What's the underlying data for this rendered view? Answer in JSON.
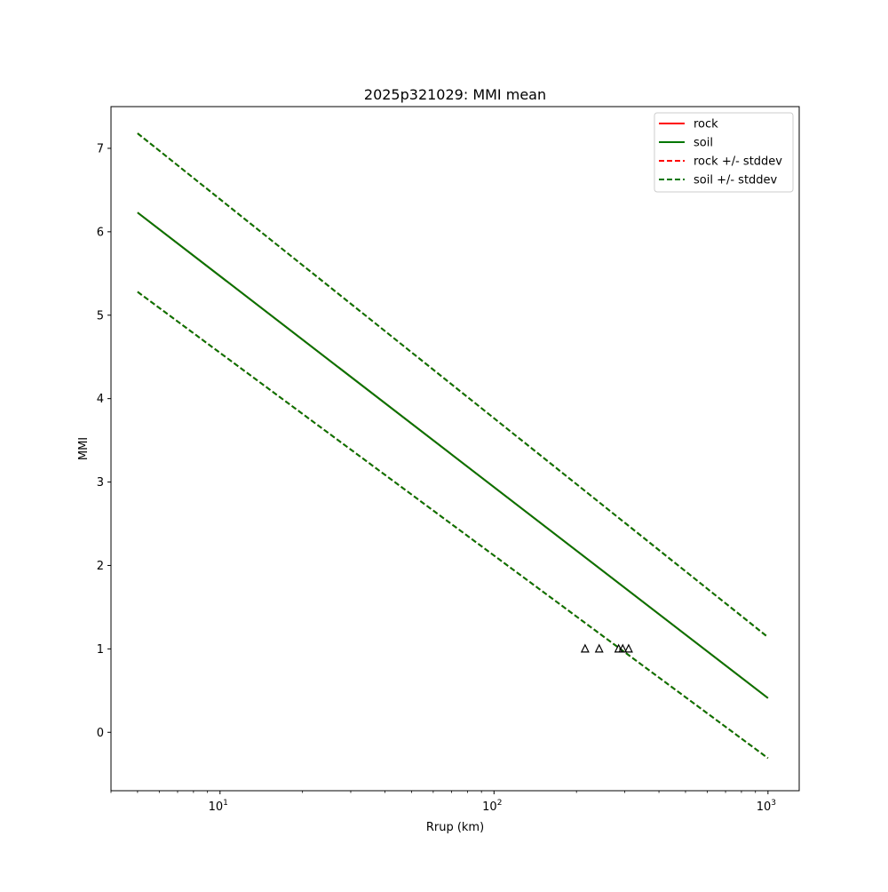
{
  "chart_data": {
    "type": "line",
    "title": "2025p321029: MMI mean",
    "xlabel": "Rrup (km)",
    "ylabel": "MMI",
    "xscale": "log",
    "xlim": [
      4,
      1300
    ],
    "ylim": [
      -0.7,
      7.5
    ],
    "grid": false,
    "legend_position": "top-right",
    "x_ticks": [
      {
        "value": 10,
        "base": "10",
        "exp": "1"
      },
      {
        "value": 100,
        "base": "10",
        "exp": "2"
      },
      {
        "value": 1000,
        "base": "10",
        "exp": "3"
      }
    ],
    "y_ticks": [
      "0",
      "1",
      "2",
      "3",
      "4",
      "5",
      "6",
      "7"
    ],
    "series": [
      {
        "name": "rock",
        "color": "#ff0000",
        "dash": false,
        "x": [
          5,
          1000
        ],
        "y": [
          6.23,
          0.41
        ]
      },
      {
        "name": "soil",
        "color": "#007700",
        "dash": false,
        "x": [
          5,
          1000
        ],
        "y": [
          6.23,
          0.41
        ]
      },
      {
        "name": "rock +/- stddev",
        "color": "#ff0000",
        "dash": true,
        "x": [
          5,
          1000
        ],
        "y": [
          7.18,
          1.14
        ]
      },
      {
        "name": "rock +/- stddev",
        "color": "#ff0000",
        "dash": true,
        "x": [
          5,
          1000
        ],
        "y": [
          5.28,
          -0.31
        ]
      },
      {
        "name": "soil +/- stddev",
        "color": "#007700",
        "dash": true,
        "x": [
          5,
          1000
        ],
        "y": [
          7.18,
          1.14
        ]
      },
      {
        "name": "soil +/- stddev",
        "color": "#007700",
        "dash": true,
        "x": [
          5,
          1000
        ],
        "y": [
          5.28,
          -0.31
        ]
      }
    ],
    "observations": {
      "marker": "triangle",
      "x": [
        215,
        242,
        285,
        295,
        310
      ],
      "y": [
        1,
        1,
        1,
        1,
        1
      ]
    },
    "legend": [
      {
        "label": "rock",
        "color": "#ff0000",
        "dash": false
      },
      {
        "label": "soil",
        "color": "#007700",
        "dash": false
      },
      {
        "label": "rock +/- stddev",
        "color": "#ff0000",
        "dash": true
      },
      {
        "label": "soil +/- stddev",
        "color": "#007700",
        "dash": true
      }
    ]
  }
}
